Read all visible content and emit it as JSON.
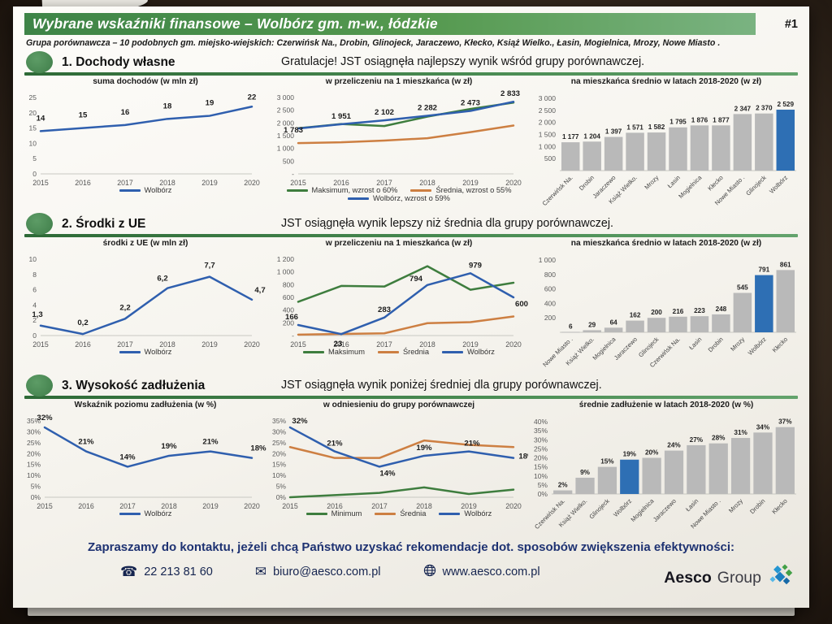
{
  "page": {
    "badge": "#1",
    "title": "Wybrane wskaźniki finansowe – Wolbórz gm. m-w., łódzkie",
    "subtitle": "Grupa porównawcza – 10 podobnych gm. miejsko-wiejskich: Czerwińsk Na., Drobin, Glinojeck, Jaraczewo, Kłecko, Książ Wielko., Łasin, Mogielnica, Mrozy, Nowe Miasto ."
  },
  "colors": {
    "banner_green": "#3e8447",
    "rule_green": "#3e7d46",
    "line_blue": "#2f5fae",
    "line_green": "#3e7d3e",
    "line_orange": "#cd7f42",
    "bar_gray": "#b9b9b9",
    "bar_blue": "#2e6fb4",
    "footer_navy": "#1e3272"
  },
  "sections": [
    {
      "title": "1. Dochody własne",
      "message": "Gratulacje! JST osiągnęła najlepszy wynik wśród grupy porównawczej."
    },
    {
      "title": "2. Środki z UE",
      "message": "JST osiągnęła wynik lepszy niż średnia dla grupy porównawczej."
    },
    {
      "title": "3. Wysokość zadłużenia",
      "message": "JST osiągnęła wynik poniżej średniej dla grupy porównawczej."
    }
  ],
  "footer": {
    "cta": "Zapraszamy do kontaktu, jeżeli chcą Państwo uzyskać rekomendacje dot.  sposobów zwiększenia efektywności:",
    "phone": "22 213 81 60",
    "email": "biuro@aesco.com.pl",
    "website": "www.aesco.com.pl",
    "brand_primary": "Aesco",
    "brand_secondary": "Group"
  },
  "chart_data": [
    {
      "type": "line",
      "title": "suma dochodów (w mln zł)",
      "x": [
        "2015",
        "2016",
        "2017",
        "2018",
        "2019",
        "2020"
      ],
      "ylim": [
        0,
        25
      ],
      "yticks": [
        {
          "v": 0,
          "label": "0"
        },
        {
          "v": 5,
          "label": "5"
        },
        {
          "v": 10,
          "label": "10"
        },
        {
          "v": 15,
          "label": "15"
        },
        {
          "v": 20,
          "label": "20"
        },
        {
          "v": 25,
          "label": "25"
        }
      ],
      "series": [
        {
          "name": "Wolbórz",
          "color": "#2f5fae",
          "values": [
            14,
            15,
            16,
            18,
            19,
            22
          ],
          "labels": [
            "14",
            "15",
            "16",
            "18",
            "19",
            "22"
          ],
          "label_dy": [
            -6,
            -6,
            -6,
            -6,
            -6,
            -2
          ]
        }
      ],
      "legend": [
        {
          "label": "Wolbórz",
          "color": "#2f5fae"
        }
      ]
    },
    {
      "type": "line",
      "title": "w przeliczeniu na 1 mieszkańca (w zł)",
      "x": [
        "2015",
        "2016",
        "2017",
        "2018",
        "2019",
        "2020"
      ],
      "ylim": [
        0,
        3000
      ],
      "yticks": [
        {
          "v": 0,
          "label": "-"
        },
        {
          "v": 500,
          "label": "500"
        },
        {
          "v": 1000,
          "label": "1 000"
        },
        {
          "v": 1500,
          "label": "1 500"
        },
        {
          "v": 2000,
          "label": "2 000"
        },
        {
          "v": 2500,
          "label": "2 500"
        },
        {
          "v": 3000,
          "label": "3 000"
        }
      ],
      "series": [
        {
          "name": "Maksimum, wzrost o 60%",
          "color": "#3e7d3e",
          "values": [
            1790,
            1960,
            1880,
            2250,
            2550,
            2800
          ]
        },
        {
          "name": "Średnia, wzrost o 55%",
          "color": "#cd7f42",
          "values": [
            1210,
            1240,
            1310,
            1400,
            1640,
            1900
          ]
        },
        {
          "name": "Wolbórz, wzrost o 59%",
          "color": "#2f5fae",
          "values": [
            1783,
            1951,
            2102,
            2282,
            2473,
            2833
          ],
          "labels": [
            "1 783",
            "1 951",
            "2 102",
            "2 282",
            "2 473",
            "2 833"
          ],
          "label_dx": [
            -6,
            0,
            0,
            0,
            0,
            -4
          ],
          "label_dy": [
            12,
            0,
            0,
            0,
            0,
            0
          ]
        }
      ],
      "legend": [
        {
          "label": "Maksimum, wzrost o 60%",
          "color": "#3e7d3e"
        },
        {
          "label": "Średnia, wzrost o 55%",
          "color": "#cd7f42"
        },
        {
          "label": "Wolbórz, wzrost o 59%",
          "color": "#2f5fae"
        }
      ]
    },
    {
      "type": "bar",
      "title": "na mieszkańca średnio w latach 2018-2020 (w zł)",
      "categories": [
        "Czerwińsk Na.",
        "Drobin",
        "Jaraczewo",
        "Książ Wielko.",
        "Mrozy",
        "Łasin",
        "Mogielnica",
        "Kłecko",
        "Nowe Miasto .",
        "Glinojeck",
        "Wolbórz"
      ],
      "values": [
        1177,
        1204,
        1397,
        1571,
        1582,
        1795,
        1876,
        1877,
        2347,
        2370,
        2529
      ],
      "value_labels": [
        "1 177",
        "1 204",
        "1 397",
        "1 571",
        "1 582",
        "1 795",
        "1 876",
        "1 877",
        "2 347",
        "2 370",
        "2 529"
      ],
      "highlight_index": 10,
      "bar_color": "#b9b9b9",
      "highlight_color": "#2e6fb4",
      "ylim": [
        0,
        3000
      ],
      "yticks": [
        {
          "v": 500,
          "label": "500"
        },
        {
          "v": 1000,
          "label": "1 000"
        },
        {
          "v": 1500,
          "label": "1 500"
        },
        {
          "v": 2000,
          "label": "2 000"
        },
        {
          "v": 2500,
          "label": "2 500"
        },
        {
          "v": 3000,
          "label": "3 000"
        }
      ]
    },
    {
      "type": "line",
      "title": "środki z UE (w mln zł)",
      "x": [
        "2015",
        "2016",
        "2017",
        "2018",
        "2019",
        "2020"
      ],
      "ylim": [
        0,
        10
      ],
      "yticks": [
        {
          "v": 0,
          "label": "0"
        },
        {
          "v": 2,
          "label": "2"
        },
        {
          "v": 4,
          "label": "4"
        },
        {
          "v": 6,
          "label": "6"
        },
        {
          "v": 8,
          "label": "8"
        },
        {
          "v": 10,
          "label": "10"
        }
      ],
      "series": [
        {
          "name": "Wolbórz",
          "color": "#2f5fae",
          "values": [
            1.3,
            0.2,
            2.2,
            6.2,
            7.7,
            4.7
          ],
          "labels": [
            "1,3",
            "0,2",
            "2,2",
            "6,2",
            "7,7",
            "4,7"
          ],
          "label_dx": [
            -4,
            0,
            0,
            -6,
            0,
            10
          ],
          "label_dy": [
            -4,
            -4,
            -4,
            -2,
            -4,
            -2
          ]
        }
      ],
      "legend": [
        {
          "label": "Wolbórz",
          "color": "#2f5fae"
        }
      ]
    },
    {
      "type": "line",
      "title": "w przeliczeniu na 1 mieszkańca (w zł)",
      "x": [
        "2015",
        "2016",
        "2017",
        "2018",
        "2019",
        "2020"
      ],
      "ylim": [
        0,
        1200
      ],
      "yticks": [
        {
          "v": 0,
          "label": "-"
        },
        {
          "v": 200,
          "label": "200"
        },
        {
          "v": 400,
          "label": "400"
        },
        {
          "v": 600,
          "label": "600"
        },
        {
          "v": 800,
          "label": "800"
        },
        {
          "v": 1000,
          "label": "1 000"
        },
        {
          "v": 1200,
          "label": "1 200"
        }
      ],
      "series": [
        {
          "name": "Maksimum",
          "color": "#3e7d3e",
          "values": [
            530,
            780,
            770,
            1090,
            720,
            830
          ]
        },
        {
          "name": "Średnia",
          "color": "#cd7f42",
          "values": [
            15,
            25,
            35,
            195,
            210,
            300
          ]
        },
        {
          "name": "Wolbórz",
          "color": "#2f5fae",
          "values": [
            166,
            23,
            283,
            794,
            979,
            600
          ],
          "labels": [
            "166",
            "23",
            "283",
            "794",
            "979",
            "600"
          ],
          "label_dx": [
            -8,
            -4,
            0,
            -14,
            6,
            10
          ],
          "label_dy": [
            0,
            22,
            0,
            2,
            0,
            18
          ]
        }
      ],
      "legend": [
        {
          "label": "Maksimum",
          "color": "#3e7d3e"
        },
        {
          "label": "Średnia",
          "color": "#cd7f42"
        },
        {
          "label": "Wolbórz",
          "color": "#2f5fae"
        }
      ]
    },
    {
      "type": "bar",
      "title": "na mieszkańca średnio w latach 2018-2020 (w zł)",
      "categories": [
        "Nowe Miasto .",
        "Książ Wielko.",
        "Mogielnica",
        "Jaraczewo",
        "Glinojeck",
        "Czerwińsk Na.",
        "Łasin",
        "Drobin",
        "Mrozy",
        "Wolbórz",
        "Kłecko"
      ],
      "values": [
        6,
        29,
        64,
        162,
        200,
        216,
        223,
        248,
        545,
        791,
        861
      ],
      "value_labels": [
        "6",
        "29",
        "64",
        "162",
        "200",
        "216",
        "223",
        "248",
        "545",
        "791",
        "861"
      ],
      "highlight_index": 9,
      "bar_color": "#b9b9b9",
      "highlight_color": "#2e6fb4",
      "ylim": [
        0,
        1000
      ],
      "yticks": [
        {
          "v": 200,
          "label": "200"
        },
        {
          "v": 400,
          "label": "400"
        },
        {
          "v": 600,
          "label": "600"
        },
        {
          "v": 800,
          "label": "800"
        },
        {
          "v": 1000,
          "label": "1 000"
        }
      ]
    },
    {
      "type": "line",
      "title": "Wskaźnik poziomu zadłużenia (w %)",
      "x": [
        "2015",
        "2016",
        "2017",
        "2018",
        "2019",
        "2020"
      ],
      "ylim": [
        0,
        35
      ],
      "yticks": [
        {
          "v": 0,
          "label": "0%"
        },
        {
          "v": 5,
          "label": "5%"
        },
        {
          "v": 10,
          "label": "10%"
        },
        {
          "v": 15,
          "label": "15%"
        },
        {
          "v": 20,
          "label": "20%"
        },
        {
          "v": 25,
          "label": "25%"
        },
        {
          "v": 30,
          "label": "30%"
        },
        {
          "v": 35,
          "label": "35%"
        }
      ],
      "series": [
        {
          "name": "Wolbórz",
          "color": "#2f5fae",
          "values": [
            32,
            21,
            14,
            19,
            21,
            18
          ],
          "labels": [
            "32%",
            "21%",
            "14%",
            "19%",
            "21%",
            "18%"
          ],
          "label_dx": [
            0,
            0,
            0,
            0,
            0,
            8
          ],
          "label_dy": [
            -2,
            -2,
            -2,
            -2,
            -2,
            -2
          ]
        }
      ],
      "legend": [
        {
          "label": "Wolbórz",
          "color": "#2f5fae"
        }
      ]
    },
    {
      "type": "line",
      "title": "w odniesieniu do grupy porównawczej",
      "x": [
        "2015",
        "2016",
        "2017",
        "2018",
        "2019",
        "2020"
      ],
      "ylim": [
        0,
        35
      ],
      "yticks": [
        {
          "v": 0,
          "label": "0%"
        },
        {
          "v": 5,
          "label": "5%"
        },
        {
          "v": 10,
          "label": "10%"
        },
        {
          "v": 15,
          "label": "15%"
        },
        {
          "v": 20,
          "label": "20%"
        },
        {
          "v": 25,
          "label": "25%"
        },
        {
          "v": 30,
          "label": "30%"
        },
        {
          "v": 35,
          "label": "35%"
        }
      ],
      "series": [
        {
          "name": "Minimum",
          "color": "#3e7d3e",
          "values": [
            0,
            1,
            2,
            4.5,
            1.5,
            3.5
          ]
        },
        {
          "name": "Średnia",
          "color": "#cd7f42",
          "values": [
            23,
            18,
            18,
            26,
            24,
            23
          ]
        },
        {
          "name": "Wolbórz",
          "color": "#2f5fae",
          "values": [
            32,
            21,
            14,
            19,
            21,
            18
          ],
          "labels": [
            "32%",
            "21%",
            "14%",
            "19%",
            "21%",
            "18%"
          ],
          "label_dx": [
            12,
            0,
            10,
            0,
            4,
            16
          ],
          "label_dy": [
            2,
            0,
            18,
            0,
            0,
            8
          ]
        }
      ],
      "legend": [
        {
          "label": "Minimum",
          "color": "#3e7d3e"
        },
        {
          "label": "Średnia",
          "color": "#cd7f42"
        },
        {
          "label": "Wolbórz",
          "color": "#2f5fae"
        }
      ]
    },
    {
      "type": "bar",
      "title": "średnie zadłużenie w latach 2018-2020 (w %)",
      "categories": [
        "Czerwińsk Na.",
        "Książ Wielko.",
        "Glinojeck",
        "Wolbórz",
        "Mogielnica",
        "Jaraczewo",
        "Łasin",
        "Nowe Miasto .",
        "Mrozy",
        "Drobin",
        "Kłecko"
      ],
      "values": [
        2,
        9,
        15,
        19,
        20,
        24,
        27,
        28,
        31,
        34,
        37
      ],
      "value_labels": [
        "2%",
        "9%",
        "15%",
        "19%",
        "20%",
        "24%",
        "27%",
        "28%",
        "31%",
        "34%",
        "37%"
      ],
      "highlight_index": 3,
      "bar_color": "#b9b9b9",
      "highlight_color": "#2e6fb4",
      "ylim": [
        0,
        40
      ],
      "yticks": [
        {
          "v": 0,
          "label": "0%"
        },
        {
          "v": 5,
          "label": "5%"
        },
        {
          "v": 10,
          "label": "10%"
        },
        {
          "v": 15,
          "label": "15%"
        },
        {
          "v": 20,
          "label": "20%"
        },
        {
          "v": 25,
          "label": "25%"
        },
        {
          "v": 30,
          "label": "30%"
        },
        {
          "v": 35,
          "label": "35%"
        },
        {
          "v": 40,
          "label": "40%"
        }
      ]
    }
  ]
}
